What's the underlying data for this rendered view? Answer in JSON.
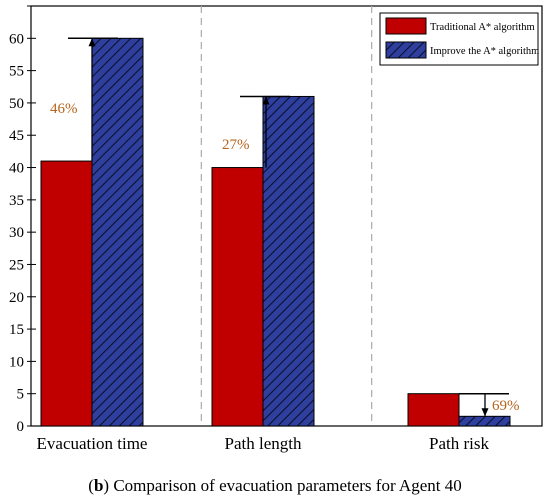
{
  "chart_data": {
    "type": "bar",
    "title": "",
    "xlabel": "",
    "ylabel": "",
    "categories": [
      "Evacuation time",
      "Path length",
      "Path risk"
    ],
    "series": [
      {
        "name": "Traditional A* algorithm",
        "values": [
          41,
          40,
          5
        ],
        "color": "#c00000",
        "pattern": "solid"
      },
      {
        "name": "Improve the A* algorithm",
        "values": [
          60,
          51,
          1.5
        ],
        "color": "#2f3f9e",
        "pattern": "hatched"
      }
    ],
    "ylim": [
      0,
      65
    ],
    "yticks": [
      0,
      5,
      10,
      15,
      20,
      25,
      30,
      35,
      40,
      45,
      50,
      55,
      60,
      65
    ],
    "grid": false,
    "category_separators": "dashed",
    "legend_position": "top-right",
    "annotations": [
      {
        "category": "Evacuation time",
        "text": "46%",
        "from": 41,
        "to": 60
      },
      {
        "category": "Path length",
        "text": "27%",
        "from": 40,
        "to": 51
      },
      {
        "category": "Path risk",
        "text": "69%",
        "from": 5,
        "to": 1.5
      }
    ],
    "caption_bold": "b",
    "caption_rest": " Comparison of evacuation parameters for Agent 40"
  }
}
